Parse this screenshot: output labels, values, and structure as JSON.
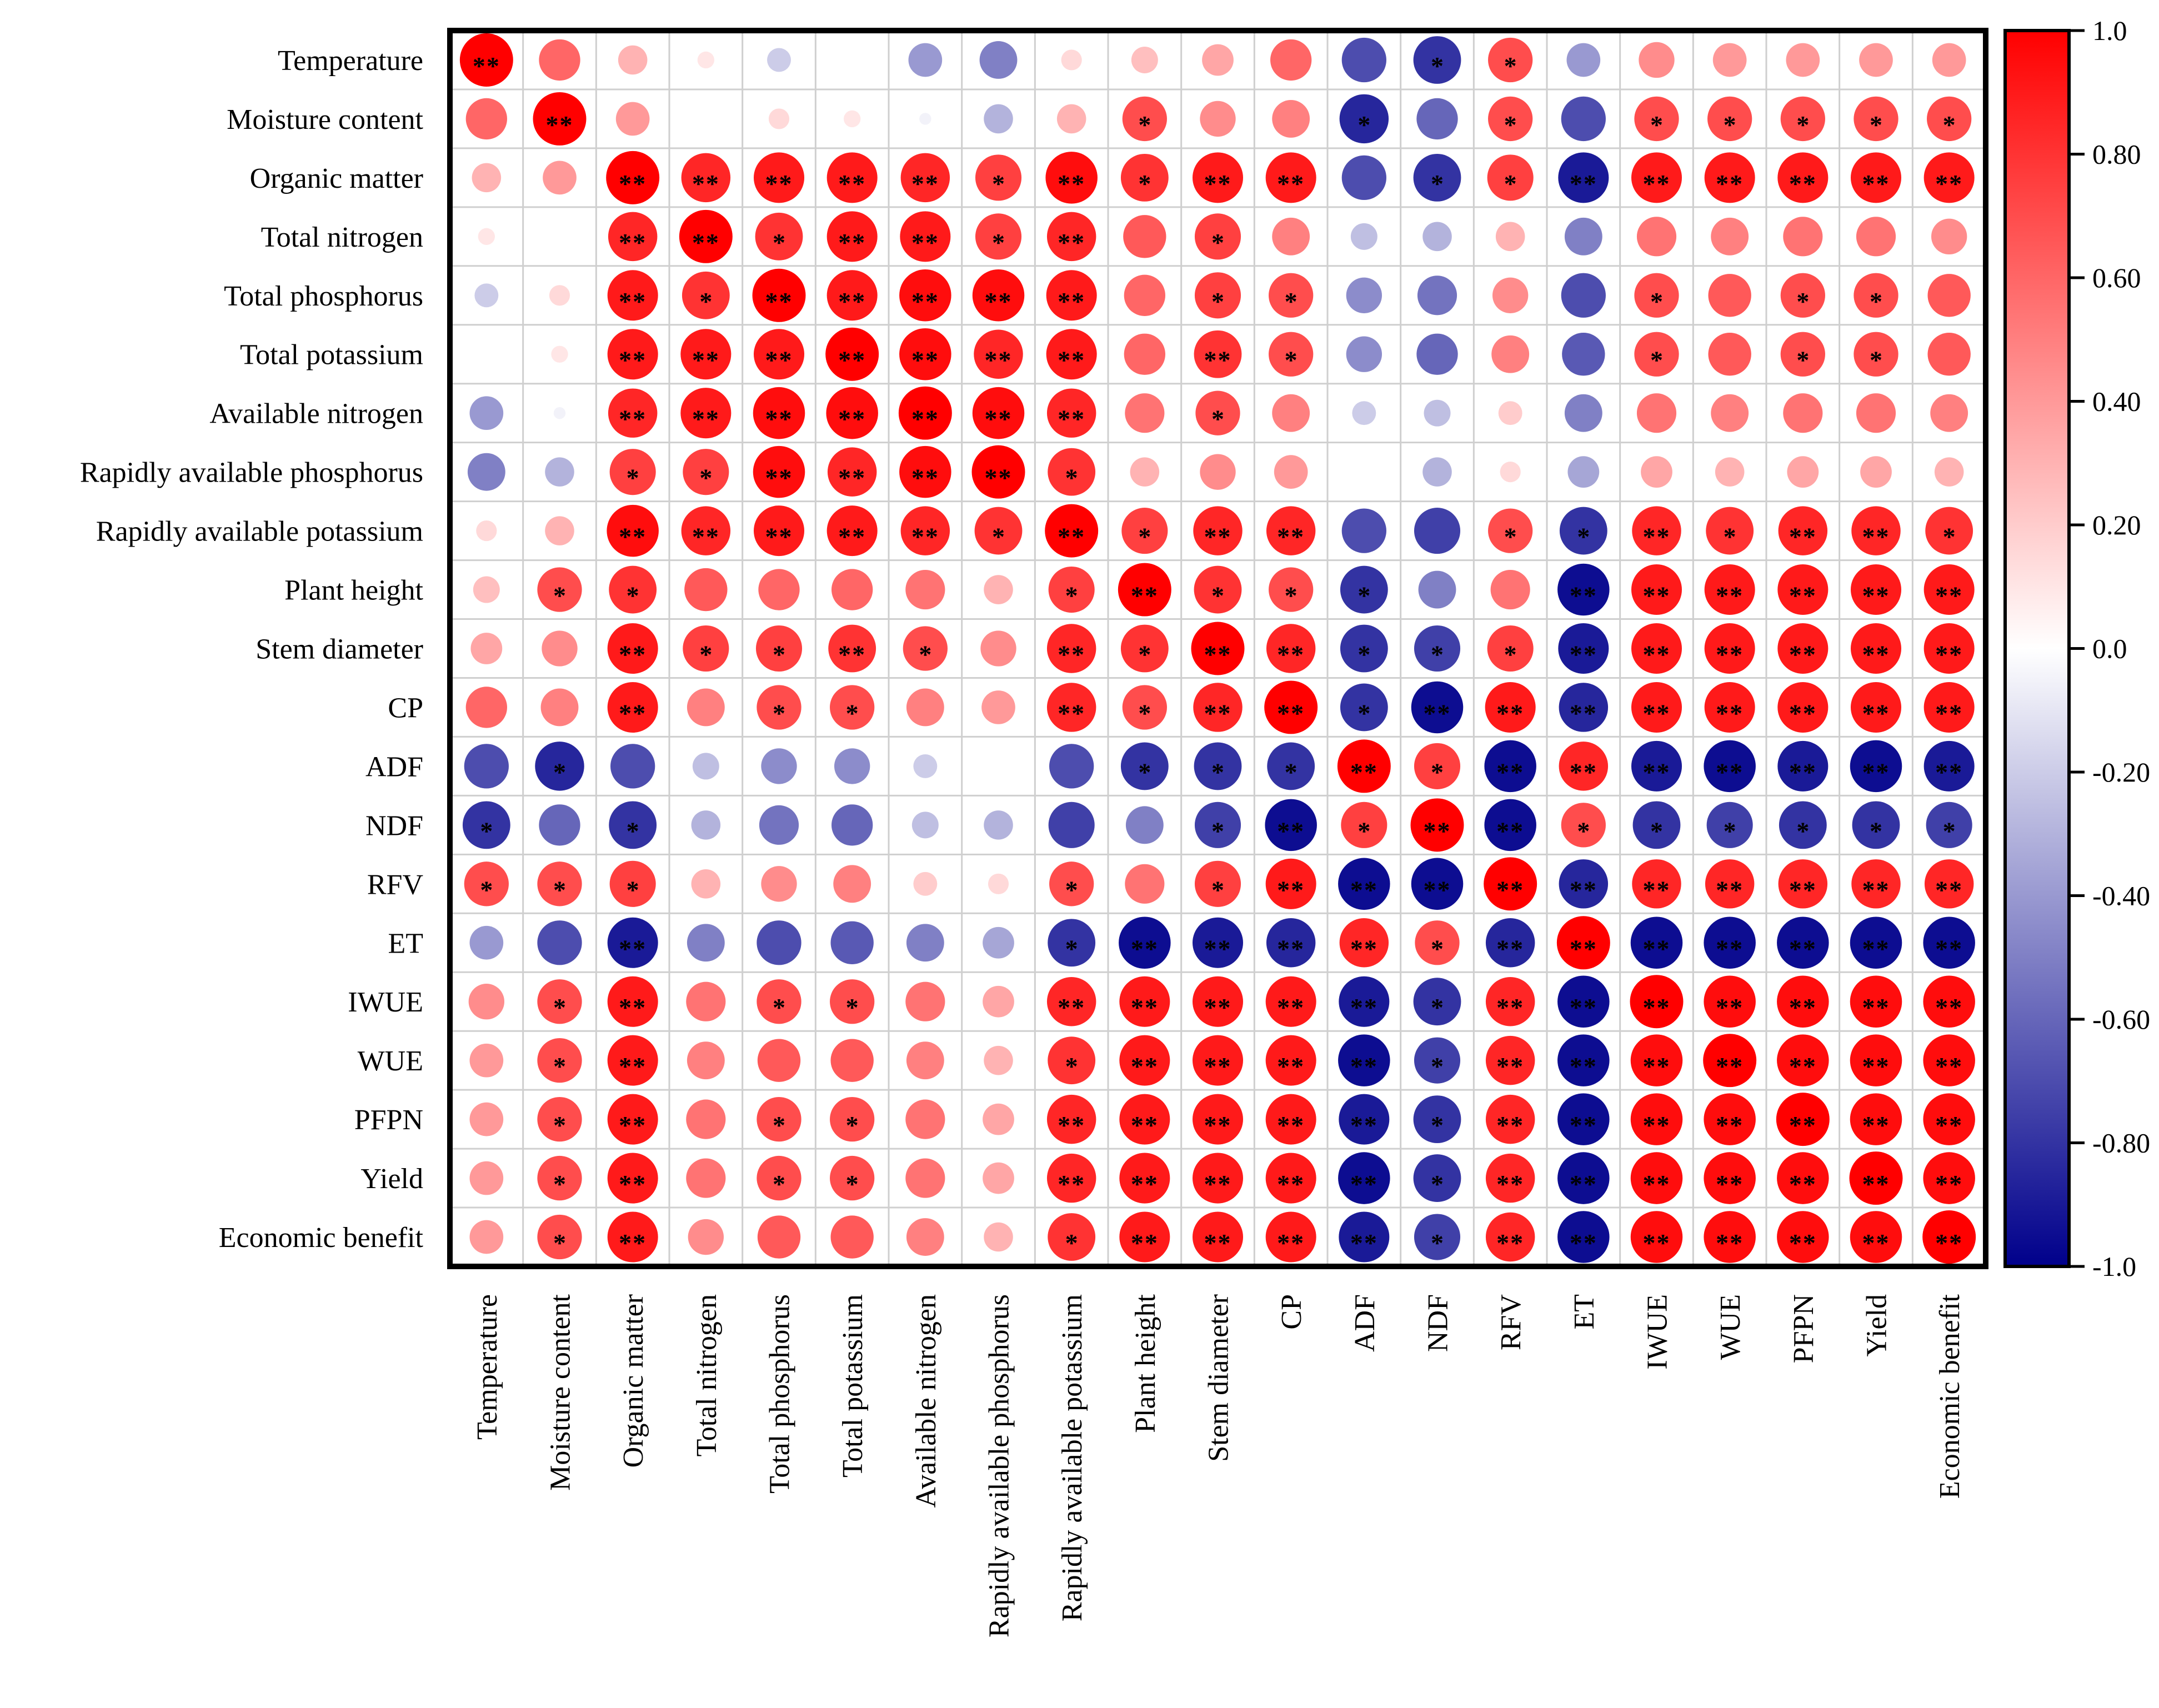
{
  "chart_data": {
    "type": "heatmap",
    "style": "circle-correlation-matrix",
    "title": "",
    "variables": [
      "Temperature",
      "Moisture content",
      "Organic matter",
      "Total nitrogen",
      "Total phosphorus",
      "Total potassium",
      "Available nitrogen",
      "Rapidly available phosphorus",
      "Rapidly available potassium",
      "Plant height",
      "Stem diameter",
      "CP",
      "ADF",
      "NDF",
      "RFV",
      "ET",
      "IWUE",
      "WUE",
      "PFPN",
      "Yield",
      "Economic benefit"
    ],
    "matrix": [
      [
        1.0,
        0.6,
        0.3,
        0.1,
        -0.2,
        0.0,
        -0.4,
        -0.5,
        0.15,
        0.25,
        0.35,
        0.6,
        -0.7,
        -0.8,
        0.7,
        -0.4,
        0.45,
        0.4,
        0.4,
        0.4,
        0.4
      ],
      [
        0.6,
        1.0,
        0.4,
        0.0,
        0.15,
        0.1,
        -0.05,
        -0.3,
        0.3,
        0.7,
        0.45,
        0.5,
        -0.85,
        -0.6,
        0.7,
        -0.7,
        0.7,
        0.7,
        0.7,
        0.7,
        0.7
      ],
      [
        0.3,
        0.4,
        1.0,
        0.85,
        0.9,
        0.9,
        0.85,
        0.75,
        0.95,
        0.8,
        0.9,
        0.9,
        -0.7,
        -0.8,
        0.75,
        -0.9,
        0.9,
        0.9,
        0.9,
        0.9,
        0.9
      ],
      [
        0.1,
        0.0,
        0.85,
        1.0,
        0.8,
        0.9,
        0.9,
        0.75,
        0.85,
        0.65,
        0.75,
        0.5,
        -0.25,
        -0.3,
        0.3,
        -0.5,
        0.55,
        0.5,
        0.55,
        0.55,
        0.45
      ],
      [
        -0.2,
        0.15,
        0.9,
        0.8,
        1.0,
        0.9,
        0.95,
        0.95,
        0.9,
        0.6,
        0.75,
        0.7,
        -0.45,
        -0.55,
        0.45,
        -0.7,
        0.7,
        0.65,
        0.7,
        0.7,
        0.65
      ],
      [
        0.0,
        0.1,
        0.9,
        0.9,
        0.9,
        1.0,
        0.95,
        0.85,
        0.9,
        0.6,
        0.8,
        0.7,
        -0.45,
        -0.6,
        0.5,
        -0.65,
        0.7,
        0.65,
        0.7,
        0.7,
        0.65
      ],
      [
        -0.4,
        -0.05,
        0.85,
        0.9,
        0.95,
        0.95,
        1.0,
        0.95,
        0.85,
        0.55,
        0.7,
        0.5,
        -0.2,
        -0.25,
        0.2,
        -0.5,
        0.55,
        0.5,
        0.55,
        0.55,
        0.5
      ],
      [
        -0.5,
        -0.3,
        0.75,
        0.75,
        0.95,
        0.85,
        0.95,
        1.0,
        0.8,
        0.3,
        0.45,
        0.4,
        0.0,
        -0.3,
        0.15,
        -0.35,
        0.35,
        0.3,
        0.35,
        0.35,
        0.3
      ],
      [
        0.15,
        0.3,
        0.95,
        0.85,
        0.9,
        0.9,
        0.85,
        0.8,
        1.0,
        0.75,
        0.85,
        0.85,
        -0.7,
        -0.75,
        0.7,
        -0.8,
        0.85,
        0.8,
        0.85,
        0.85,
        0.8
      ],
      [
        0.25,
        0.7,
        0.8,
        0.65,
        0.6,
        0.6,
        0.55,
        0.3,
        0.75,
        1.0,
        0.8,
        0.7,
        -0.8,
        -0.5,
        0.55,
        -0.95,
        0.9,
        0.9,
        0.9,
        0.9,
        0.9
      ],
      [
        0.35,
        0.45,
        0.9,
        0.75,
        0.75,
        0.8,
        0.7,
        0.45,
        0.85,
        0.8,
        1.0,
        0.85,
        -0.8,
        -0.75,
        0.75,
        -0.9,
        0.9,
        0.9,
        0.9,
        0.9,
        0.9
      ],
      [
        0.6,
        0.5,
        0.9,
        0.5,
        0.7,
        0.7,
        0.5,
        0.4,
        0.85,
        0.7,
        0.85,
        1.0,
        -0.8,
        -0.95,
        0.9,
        -0.85,
        0.9,
        0.9,
        0.9,
        0.9,
        0.9
      ],
      [
        -0.7,
        -0.85,
        -0.7,
        -0.25,
        -0.45,
        -0.45,
        -0.2,
        0.0,
        -0.7,
        -0.8,
        -0.8,
        -0.8,
        1.0,
        0.75,
        -0.95,
        0.85,
        -0.9,
        -0.95,
        -0.9,
        -0.95,
        -0.9
      ],
      [
        -0.8,
        -0.6,
        -0.8,
        -0.3,
        -0.55,
        -0.6,
        -0.25,
        -0.3,
        -0.75,
        -0.5,
        -0.75,
        -0.95,
        0.75,
        1.0,
        -0.95,
        0.7,
        -0.8,
        -0.75,
        -0.8,
        -0.8,
        -0.75
      ],
      [
        0.7,
        0.7,
        0.75,
        0.3,
        0.45,
        0.5,
        0.2,
        0.15,
        0.7,
        0.55,
        0.75,
        0.9,
        -0.95,
        -0.95,
        1.0,
        -0.85,
        0.85,
        0.85,
        0.85,
        0.85,
        0.85
      ],
      [
        -0.4,
        -0.7,
        -0.9,
        -0.5,
        -0.7,
        -0.65,
        -0.5,
        -0.35,
        -0.8,
        -0.95,
        -0.9,
        -0.85,
        0.85,
        0.7,
        -0.85,
        1.0,
        -0.95,
        -0.95,
        -0.95,
        -0.95,
        -0.95
      ],
      [
        0.45,
        0.7,
        0.9,
        0.55,
        0.7,
        0.7,
        0.55,
        0.35,
        0.85,
        0.9,
        0.9,
        0.9,
        -0.9,
        -0.8,
        0.85,
        -0.95,
        1.0,
        0.95,
        0.95,
        0.95,
        0.95
      ],
      [
        0.4,
        0.7,
        0.9,
        0.5,
        0.65,
        0.65,
        0.5,
        0.3,
        0.8,
        0.9,
        0.9,
        0.9,
        -0.95,
        -0.75,
        0.85,
        -0.95,
        0.95,
        1.0,
        0.95,
        0.95,
        0.95
      ],
      [
        0.4,
        0.7,
        0.9,
        0.55,
        0.7,
        0.7,
        0.55,
        0.35,
        0.85,
        0.9,
        0.9,
        0.9,
        -0.9,
        -0.8,
        0.85,
        -0.95,
        0.95,
        0.95,
        1.0,
        0.95,
        0.95
      ],
      [
        0.4,
        0.7,
        0.9,
        0.55,
        0.7,
        0.7,
        0.55,
        0.35,
        0.85,
        0.9,
        0.9,
        0.9,
        -0.95,
        -0.8,
        0.85,
        -0.95,
        0.95,
        0.95,
        0.95,
        1.0,
        0.95
      ],
      [
        0.4,
        0.7,
        0.9,
        0.45,
        0.65,
        0.65,
        0.5,
        0.3,
        0.8,
        0.9,
        0.9,
        0.9,
        -0.9,
        -0.75,
        0.85,
        -0.95,
        0.95,
        0.95,
        0.95,
        0.95,
        1.0
      ]
    ],
    "significance": [
      [
        "**",
        "",
        "",
        "",
        "",
        "",
        "",
        "",
        "",
        "",
        "",
        "",
        "",
        "*",
        "*",
        "",
        "",
        "",
        "",
        "",
        ""
      ],
      [
        "",
        "**",
        "",
        "",
        "",
        "",
        "",
        "",
        "",
        "*",
        "",
        "",
        "*",
        "",
        "*",
        "",
        "*",
        "*",
        "*",
        "*",
        "*"
      ],
      [
        "",
        "",
        "**",
        "**",
        "**",
        "**",
        "**",
        "*",
        "**",
        "*",
        "**",
        "**",
        "",
        "*",
        "*",
        "**",
        "**",
        "**",
        "**",
        "**",
        "**"
      ],
      [
        "",
        "",
        "**",
        "**",
        "*",
        "**",
        "**",
        "*",
        "**",
        "",
        "*",
        "",
        "",
        "",
        "",
        "",
        "",
        "",
        "",
        "",
        ""
      ],
      [
        "",
        "",
        "**",
        "*",
        "**",
        "**",
        "**",
        "**",
        "**",
        "",
        "*",
        "*",
        "",
        "",
        "",
        "",
        "*",
        "",
        "*",
        "*",
        ""
      ],
      [
        "",
        "",
        "**",
        "**",
        "**",
        "**",
        "**",
        "**",
        "**",
        "",
        "**",
        "*",
        "",
        "",
        "",
        "",
        "*",
        "",
        "*",
        "*",
        ""
      ],
      [
        "",
        "",
        "**",
        "**",
        "**",
        "**",
        "**",
        "**",
        "**",
        "",
        "*",
        "",
        "",
        "",
        "",
        "",
        "",
        "",
        "",
        "",
        ""
      ],
      [
        "",
        "",
        "*",
        "*",
        "**",
        "**",
        "**",
        "**",
        "*",
        "",
        "",
        "",
        "",
        "",
        "",
        "",
        "",
        "",
        "",
        "",
        ""
      ],
      [
        "",
        "",
        "**",
        "**",
        "**",
        "**",
        "**",
        "*",
        "**",
        "*",
        "**",
        "**",
        "",
        "",
        "*",
        "*",
        "**",
        "*",
        "**",
        "**",
        "*"
      ],
      [
        "",
        "*",
        "*",
        "",
        "",
        "",
        "",
        "",
        "*",
        "**",
        "*",
        "*",
        "*",
        "",
        "",
        "**",
        "**",
        "**",
        "**",
        "**",
        "**"
      ],
      [
        "",
        "",
        "**",
        "*",
        "*",
        "**",
        "*",
        "",
        "**",
        "*",
        "**",
        "**",
        "*",
        "*",
        "*",
        "**",
        "**",
        "**",
        "**",
        "**",
        "**"
      ],
      [
        "",
        "",
        "**",
        "",
        "*",
        "*",
        "",
        "",
        "**",
        "*",
        "**",
        "**",
        "*",
        "**",
        "**",
        "**",
        "**",
        "**",
        "**",
        "**",
        "**"
      ],
      [
        "",
        "*",
        "",
        "",
        "",
        "",
        "",
        "",
        "",
        "*",
        "*",
        "*",
        "**",
        "*",
        "**",
        "**",
        "**",
        "**",
        "**",
        "**",
        "**"
      ],
      [
        "*",
        "",
        "*",
        "",
        "",
        "",
        "",
        "",
        "",
        "",
        "*",
        "**",
        "*",
        "**",
        "**",
        "*",
        "*",
        "*",
        "*",
        "*",
        "*"
      ],
      [
        "*",
        "*",
        "*",
        "",
        "",
        "",
        "",
        "",
        "*",
        "",
        "*",
        "**",
        "**",
        "**",
        "**",
        "**",
        "**",
        "**",
        "**",
        "**",
        "**"
      ],
      [
        "",
        "",
        "**",
        "",
        "",
        "",
        "",
        "",
        "*",
        "**",
        "**",
        "**",
        "**",
        "*",
        "**",
        "**",
        "**",
        "**",
        "**",
        "**",
        "**"
      ],
      [
        "",
        "*",
        "**",
        "",
        "*",
        "*",
        "",
        "",
        "**",
        "**",
        "**",
        "**",
        "**",
        "*",
        "**",
        "**",
        "**",
        "**",
        "**",
        "**",
        "**"
      ],
      [
        "",
        "*",
        "**",
        "",
        "",
        "",
        "",
        "",
        "*",
        "**",
        "**",
        "**",
        "**",
        "*",
        "**",
        "**",
        "**",
        "**",
        "**",
        "**",
        "**"
      ],
      [
        "",
        "*",
        "**",
        "",
        "*",
        "*",
        "",
        "",
        "**",
        "**",
        "**",
        "**",
        "**",
        "*",
        "**",
        "**",
        "**",
        "**",
        "**",
        "**",
        "**"
      ],
      [
        "",
        "*",
        "**",
        "",
        "*",
        "*",
        "",
        "",
        "**",
        "**",
        "**",
        "**",
        "**",
        "*",
        "**",
        "**",
        "**",
        "**",
        "**",
        "**",
        "**"
      ],
      [
        "",
        "*",
        "**",
        "",
        "",
        "",
        "",
        "",
        "*",
        "**",
        "**",
        "**",
        "**",
        "*",
        "**",
        "**",
        "**",
        "**",
        "**",
        "**",
        "**"
      ]
    ],
    "colorbar": {
      "range": [
        -1.0,
        1.0
      ],
      "tick_labels": [
        "1.0",
        "0.80",
        "0.60",
        "0.40",
        "0.20",
        "0.0",
        "-0.20",
        "-0.40",
        "-0.60",
        "-0.80",
        "-1.0"
      ],
      "tick_values": [
        1.0,
        0.8,
        0.6,
        0.4,
        0.2,
        0.0,
        -0.2,
        -0.4,
        -0.6,
        -0.8,
        -1.0
      ],
      "colors": {
        "negative": "#00008b",
        "zero": "#ffffff",
        "positive": "#ff0000"
      }
    },
    "grid": true,
    "legend_position": "right"
  }
}
